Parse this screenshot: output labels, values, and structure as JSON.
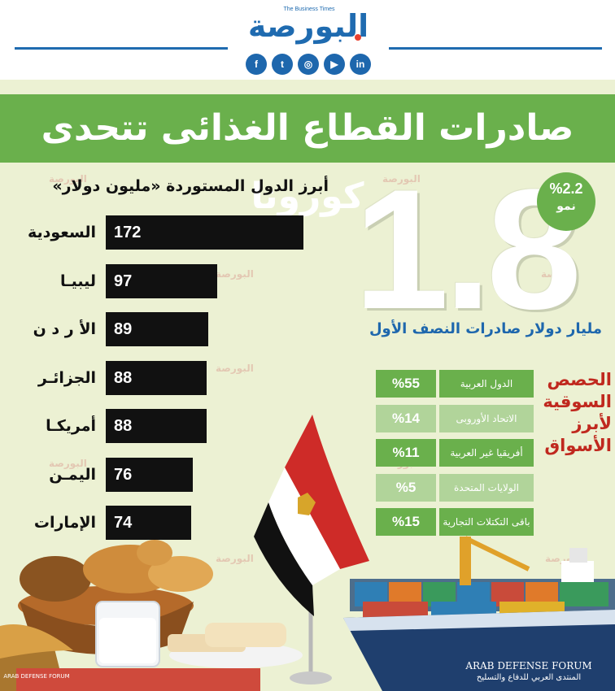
{
  "header": {
    "logo_text": "البورصة",
    "logo_tagline": "The Business Times",
    "social_icons": [
      {
        "name": "facebook-icon",
        "glyph": "f"
      },
      {
        "name": "twitter-icon",
        "glyph": "t"
      },
      {
        "name": "instagram-icon",
        "glyph": "◎"
      },
      {
        "name": "youtube-icon",
        "glyph": "▶"
      },
      {
        "name": "linkedin-icon",
        "glyph": "in"
      }
    ],
    "accent": "#1f6bb0"
  },
  "title": "صادرات القطاع الغذائى تتحدى كورونا",
  "headline": {
    "value": "1.8",
    "caption": "مليار دولار صادرات النصف الأول",
    "growth_pct": "%2.2",
    "growth_word": "نمو"
  },
  "chart_data": [
    {
      "type": "bar",
      "title": "أبرز الدول المستوردة «مليون دولار»",
      "categories": [
        "السعودية",
        "ليبيا",
        "الأردن",
        "الجزائر",
        "أمريكا",
        "اليمن",
        "الإمارات"
      ],
      "category_labels": [
        "السعودية",
        "ليبيـا",
        "الأ ر د ن",
        "الجزائـر",
        "أمريكـا",
        "اليمـن",
        "الإمارات"
      ],
      "values": [
        172,
        97,
        89,
        88,
        88,
        76,
        74
      ],
      "orientation": "horizontal",
      "bar_color": "#111111"
    },
    {
      "type": "table",
      "title": "الحصص السوقية لأبرز الأسواق",
      "rows": [
        {
          "label": "الدول العربية",
          "value": "%55",
          "shade": "dark"
        },
        {
          "label": "الاتحاد الأوروبى",
          "value": "%14",
          "shade": "light"
        },
        {
          "label": "أفريقيا غير العربية",
          "value": "%11",
          "shade": "dark"
        },
        {
          "label": "الولايات المتحدة",
          "value": "%5",
          "shade": "light"
        },
        {
          "label": "باقى التكتلات التجارية",
          "value": "%15",
          "shade": "dark"
        }
      ],
      "colors": {
        "dark": "#6ab04c",
        "light": "#b1d49a",
        "title": "#c0281e"
      }
    }
  ],
  "watermark": {
    "text": "البورصة",
    "footer_en": "ARAB DEFENSE FORUM",
    "footer_ar": "المنتدى العربي للدفاع والتسليح",
    "corner": "ARAB DEFENSE FORUM"
  },
  "colors": {
    "background": "#ecf1d3",
    "green": "#6ab04c",
    "blue": "#1e67ad"
  }
}
